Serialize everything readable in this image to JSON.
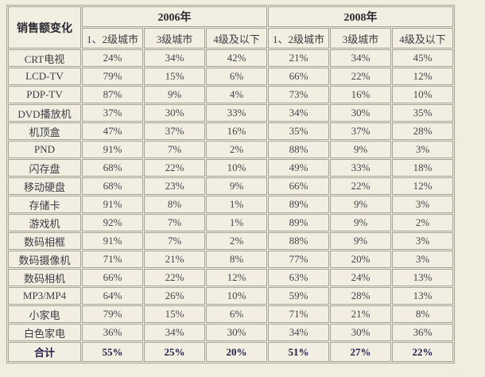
{
  "title": "销售额变化",
  "chart_data": {
    "type": "table",
    "corner_header": "销售额变化",
    "year_groups": [
      {
        "label": "2006年",
        "columns": [
          "1、2级城市",
          "3级城市",
          "4级及以下"
        ]
      },
      {
        "label": "2008年",
        "columns": [
          "1、2级城市",
          "3级城市",
          "4级及以下"
        ]
      }
    ],
    "rows": [
      {
        "label": "CRT电视",
        "values": [
          "24%",
          "34%",
          "42%",
          "21%",
          "34%",
          "45%"
        ]
      },
      {
        "label": "LCD-TV",
        "values": [
          "79%",
          "15%",
          "6%",
          "66%",
          "22%",
          "12%"
        ]
      },
      {
        "label": "PDP-TV",
        "values": [
          "87%",
          "9%",
          "4%",
          "73%",
          "16%",
          "10%"
        ]
      },
      {
        "label": "DVD播放机",
        "values": [
          "37%",
          "30%",
          "33%",
          "34%",
          "30%",
          "35%"
        ]
      },
      {
        "label": "机顶盒",
        "values": [
          "47%",
          "37%",
          "16%",
          "35%",
          "37%",
          "28%"
        ]
      },
      {
        "label": "PND",
        "values": [
          "91%",
          "7%",
          "2%",
          "88%",
          "9%",
          "3%"
        ]
      },
      {
        "label": "闪存盘",
        "values": [
          "68%",
          "22%",
          "10%",
          "49%",
          "33%",
          "18%"
        ]
      },
      {
        "label": "移动硬盘",
        "values": [
          "68%",
          "23%",
          "9%",
          "66%",
          "22%",
          "12%"
        ]
      },
      {
        "label": "存储卡",
        "values": [
          "91%",
          "8%",
          "1%",
          "89%",
          "9%",
          "3%"
        ]
      },
      {
        "label": "游戏机",
        "values": [
          "92%",
          "7%",
          "1%",
          "89%",
          "9%",
          "2%"
        ]
      },
      {
        "label": "数码相框",
        "values": [
          "91%",
          "7%",
          "2%",
          "88%",
          "9%",
          "3%"
        ]
      },
      {
        "label": "数码摄像机",
        "values": [
          "71%",
          "21%",
          "8%",
          "77%",
          "20%",
          "3%"
        ]
      },
      {
        "label": "数码相机",
        "values": [
          "66%",
          "22%",
          "12%",
          "63%",
          "24%",
          "13%"
        ]
      },
      {
        "label": "MP3/MP4",
        "values": [
          "64%",
          "26%",
          "10%",
          "59%",
          "28%",
          "13%"
        ]
      },
      {
        "label": "小家电",
        "values": [
          "79%",
          "15%",
          "6%",
          "71%",
          "21%",
          "8%"
        ]
      },
      {
        "label": "白色家电",
        "values": [
          "36%",
          "34%",
          "30%",
          "34%",
          "30%",
          "36%"
        ]
      }
    ],
    "total_row": {
      "label": "合计",
      "values": [
        "55%",
        "25%",
        "20%",
        "51%",
        "27%",
        "22%"
      ]
    }
  },
  "colors": {
    "page_bg": "#f1eddf",
    "cell_bg": "#f2eee1",
    "border": "#a3a396",
    "text": "#45454e",
    "header_text": "#2b2b34",
    "total_text": "#20204a"
  }
}
